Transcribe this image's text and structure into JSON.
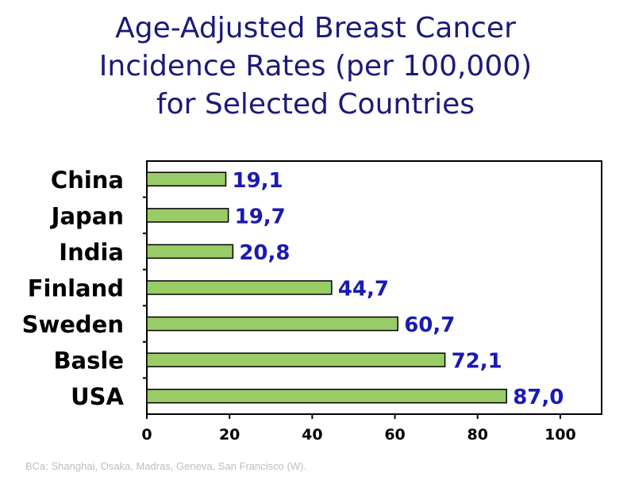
{
  "title_lines": [
    "Age-Adjusted Breast Cancer",
    "Incidence Rates (per 100,000)",
    "for Selected Countries"
  ],
  "footnote": "BCa: Shanghai, Osaka, Madras, Geneva, San Francisco (W).",
  "colors": {
    "title": "#1a1a7a",
    "bar_fill": "#99cc66",
    "bar_stroke": "#000000",
    "value_label": "#1a1ab4",
    "axis": "#000000",
    "footnote": "#bdbdbd"
  },
  "chart_data": {
    "type": "bar",
    "orientation": "horizontal",
    "title": "Age-Adjusted Breast Cancer Incidence Rates (per 100,000) for Selected Countries",
    "categories": [
      "China",
      "Japan",
      "India",
      "Finland",
      "Sweden",
      "Basle",
      "USA"
    ],
    "values": [
      19.1,
      19.7,
      20.8,
      44.7,
      60.7,
      72.1,
      87.0
    ],
    "value_labels": [
      "19,1",
      "19,7",
      "20,8",
      "44,7",
      "60,7",
      "72,1",
      "87,0"
    ],
    "xlim": [
      0,
      110
    ],
    "xticks": [
      0,
      20,
      40,
      60,
      80,
      100
    ],
    "xtick_labels": [
      "0",
      "20",
      "40",
      "60",
      "80",
      "100"
    ],
    "grid": false,
    "legend": "none"
  }
}
